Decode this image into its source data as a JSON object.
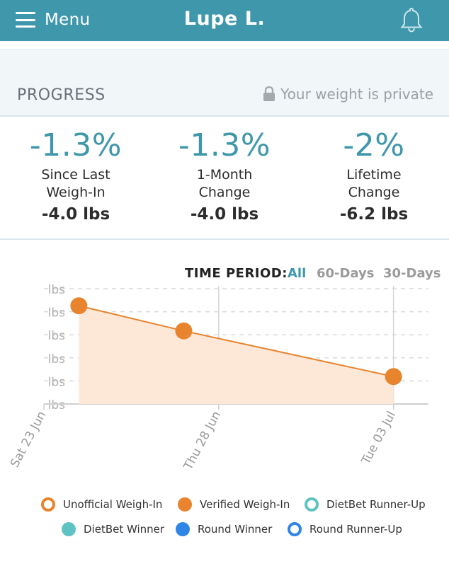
{
  "header": {
    "menu_label": "Menu",
    "user_name": "Lupe L.",
    "bell_icon": "bell-icon",
    "bg_color": "#3f97ab"
  },
  "progress": {
    "title": "PROGRESS",
    "privacy_text": "Your weight is private",
    "privacy_icon": "lock-icon"
  },
  "stats": [
    {
      "percent": "-1.3%",
      "label_line1": "Since Last",
      "label_line2": "Weigh-In",
      "lbs": "-4.0 lbs"
    },
    {
      "percent": "-1.3%",
      "label_line1": "1-Month",
      "label_line2": "Change",
      "lbs": "-4.0 lbs"
    },
    {
      "percent": "-2%",
      "label_line1": "Lifetime",
      "label_line2": "Change",
      "lbs": "-6.2 lbs"
    }
  ],
  "time_period": {
    "label": "TIME PERIOD:",
    "options": [
      "All",
      "60-Days",
      "30-Days"
    ],
    "selected": "All",
    "active_color": "#3e97ab",
    "inactive_color": "#9a9a9a"
  },
  "chart_data": {
    "type": "line",
    "x": [
      "2018-06-24",
      "2018-06-27",
      "2018-07-03"
    ],
    "xtick_labels": [
      "Sat 23 Jun",
      "Thu 28 Jun",
      "Tue 03 Jul"
    ],
    "xtick_dates": [
      "2018-06-23",
      "2018-06-28",
      "2018-07-03"
    ],
    "xlim": [
      "2018-06-23",
      "2018-07-04"
    ],
    "ytick_labels": [
      "lbs",
      "lbs",
      "lbs",
      "lbs",
      "lbs",
      "lbs"
    ],
    "series": [
      {
        "values": [
          5.5,
          3.3,
          -0.7
        ],
        "color": "#e8842e",
        "marker": "verified-weigh-in"
      }
    ],
    "ylim": [
      -3.1,
      7.0
    ],
    "grid": true,
    "area_fill": "#fde8d8"
  },
  "legend": [
    {
      "label": "Unofficial Weigh-In",
      "style": "ring",
      "color": "#e8842e"
    },
    {
      "label": "Verified Weigh-In",
      "style": "filled",
      "color": "#e8842e"
    },
    {
      "label": "DietBet Runner-Up",
      "style": "ring",
      "color": "#5fc3c3"
    },
    {
      "label": "DietBet Winner",
      "style": "filled",
      "color": "#5fc3c3"
    },
    {
      "label": "Round Winner",
      "style": "filled",
      "color": "#2f86e6"
    },
    {
      "label": "Round Runner-Up",
      "style": "ring",
      "color": "#2f86e6"
    }
  ]
}
